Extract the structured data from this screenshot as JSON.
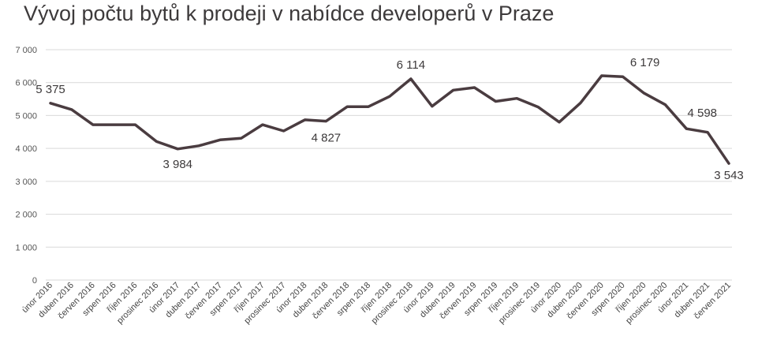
{
  "chart_data": {
    "type": "line",
    "title": "Vývoj počtu bytů k prodeji v nabídce developerů v Praze",
    "xlabel": "",
    "ylabel": "",
    "ylim": [
      0,
      7000
    ],
    "yticks": [
      0,
      1000,
      2000,
      3000,
      4000,
      5000,
      6000,
      7000
    ],
    "ytick_labels": [
      "0",
      "1 000",
      "2 000",
      "3 000",
      "4 000",
      "5 000",
      "6 000",
      "7 000"
    ],
    "grid": true,
    "legend": "none",
    "line_color": "#4a3c40",
    "grid_color": "#d9d9d9",
    "categories": [
      "únor 2016",
      "duben 2016",
      "červen 2016",
      "srpen 2016",
      "říjen 2016",
      "prosinec 2016",
      "únor 2017",
      "duben 2017",
      "červen 2017",
      "srpen 2017",
      "říjen 2017",
      "prosinec 2017",
      "únor 2018",
      "duben 2018",
      "červen 2018",
      "srpen 2018",
      "říjen 2018",
      "prosinec 2018",
      "únor 2019",
      "duben 2019",
      "červen 2019",
      "srpen 2019",
      "říjen 2019",
      "prosinec 2019",
      "únor 2020",
      "duben 2020",
      "červen 2020",
      "srpen 2020",
      "říjen 2020",
      "prosinec 2020",
      "únor 2021",
      "duben 2021",
      "červen 2021"
    ],
    "values": [
      5375,
      5180,
      4720,
      4720,
      4720,
      4210,
      3984,
      4080,
      4260,
      4310,
      4720,
      4530,
      4870,
      4827,
      5270,
      5270,
      5580,
      6114,
      5280,
      5770,
      5850,
      5430,
      5520,
      5260,
      4800,
      5380,
      6210,
      6179,
      5680,
      5330,
      4598,
      4490,
      3543
    ],
    "data_labels": [
      {
        "index": 0,
        "text": "5 375"
      },
      {
        "index": 6,
        "text": "3 984"
      },
      {
        "index": 13,
        "text": "4 827"
      },
      {
        "index": 17,
        "text": "6 114"
      },
      {
        "index": 27,
        "text": "6 179"
      },
      {
        "index": 30,
        "text": "4 598"
      },
      {
        "index": 32,
        "text": "3 543"
      }
    ]
  }
}
